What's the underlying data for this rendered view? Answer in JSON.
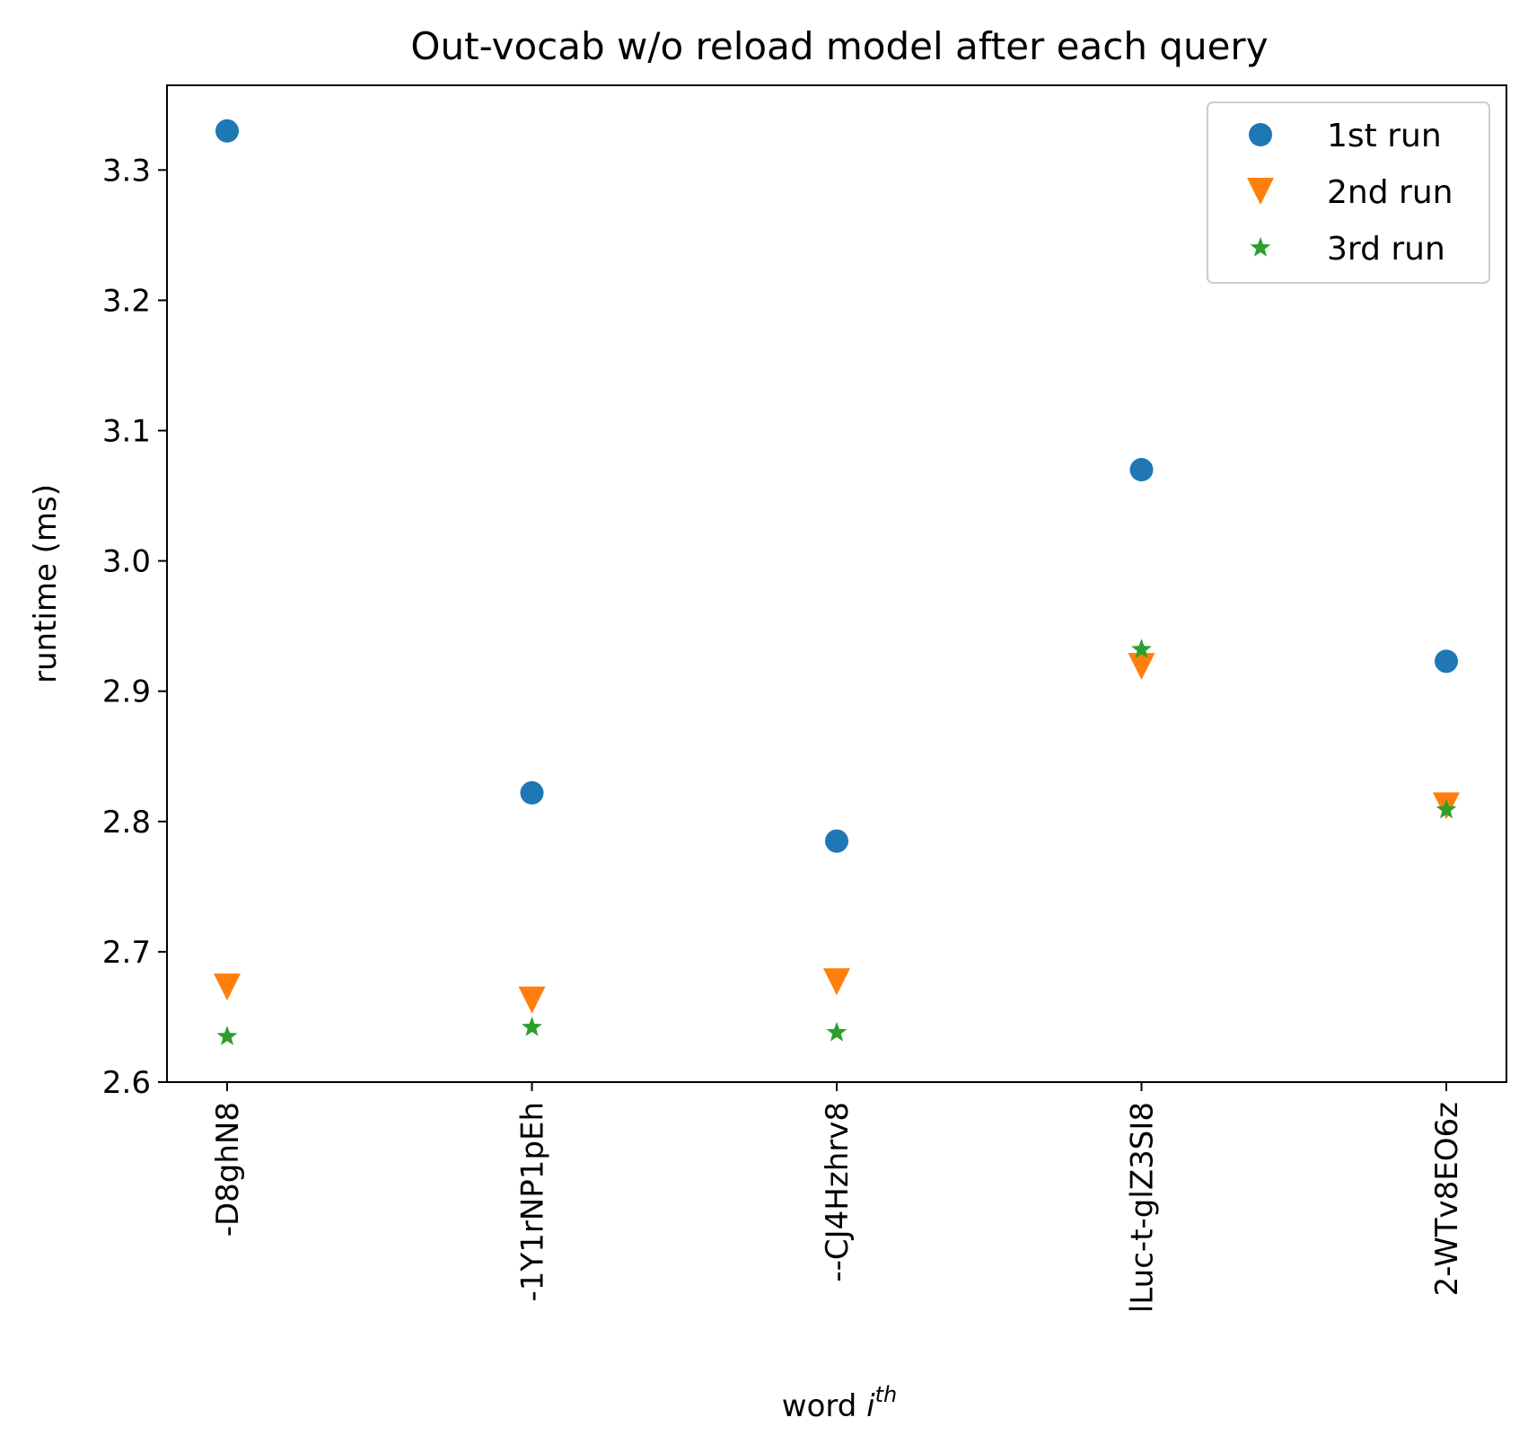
{
  "chart_data": {
    "type": "scatter",
    "title": "Out-vocab w/o reload model after each query",
    "xlabel": "word",
    "xlabel_sup": "th",
    "xlabel_var": "i",
    "ylabel": "runtime (ms)",
    "categories": [
      "-D8ghN8",
      "-1Y1rNP1pEh",
      "--CJ4Hzhrv8",
      "lLuc-t-glZ3SI8",
      "2-WTv8EO6z"
    ],
    "ylim": [
      2.6,
      3.365
    ],
    "yticks": [
      "2.6",
      "2.7",
      "2.8",
      "2.9",
      "3.0",
      "3.1",
      "3.2",
      "3.3"
    ],
    "grid": false,
    "legend_position": "top-right",
    "series": [
      {
        "name": "1st run",
        "marker": "circle",
        "color": "#1f77b4",
        "values": [
          3.33,
          2.822,
          2.785,
          3.07,
          2.923
        ]
      },
      {
        "name": "2nd run",
        "marker": "triangle-down",
        "color": "#ff7f0e",
        "values": [
          2.673,
          2.663,
          2.677,
          2.919,
          2.812
        ]
      },
      {
        "name": "3rd run",
        "marker": "star",
        "color": "#2ca02c",
        "values": [
          2.635,
          2.642,
          2.638,
          2.932,
          2.809
        ]
      }
    ]
  }
}
